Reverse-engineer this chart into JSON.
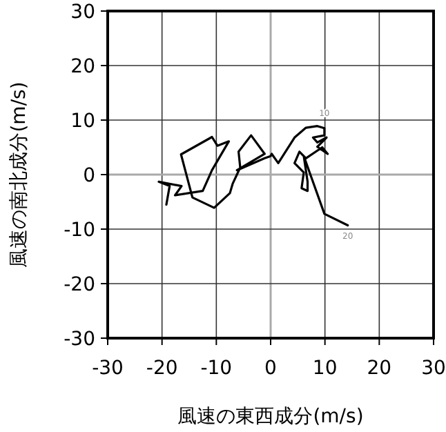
{
  "chart_data": {
    "type": "line",
    "xlabel": "風速の東西成分(m/s)",
    "ylabel": "風速の南北成分(m/s)",
    "xlim": [
      -30,
      30
    ],
    "ylim": [
      -30,
      30
    ],
    "xticks": [
      -30,
      -20,
      -10,
      0,
      10,
      20,
      30
    ],
    "yticks": [
      -30,
      -20,
      -10,
      0,
      10,
      20,
      30
    ],
    "grid": true,
    "series": [
      {
        "color": "#000000",
        "x": [
          -19.2,
          -18.6,
          -20.6,
          -16.4,
          -17.6,
          -12.5,
          -10.8,
          -7.7,
          -9.8,
          -10.8,
          -16.5,
          -14.4,
          -10.4,
          -7.5,
          -7.0,
          -5.6,
          -5.9,
          -3.6,
          -1.1,
          -6.2,
          -1.1,
          0.0,
          0.2,
          1.4,
          4.4,
          6.5,
          8.6,
          9.9,
          9.9,
          7.8,
          8.6,
          10.3,
          8.6,
          10.5,
          9.5,
          6.5,
          5.3,
          4.4,
          6.1,
          5.7,
          6.8,
          6.8,
          6.1,
          9.9,
          14.2
        ],
        "values": [
          -5.5,
          -2.1,
          -1.3,
          -2.1,
          -3.8,
          -3.0,
          0.8,
          6.1,
          5.3,
          6.9,
          3.7,
          -4.2,
          -6.1,
          -3.4,
          -1.7,
          1.3,
          4.2,
          7.2,
          3.8,
          0.8,
          3.0,
          3.4,
          3.8,
          2.1,
          6.8,
          8.6,
          8.9,
          8.5,
          7.2,
          6.8,
          5.9,
          6.8,
          5.1,
          3.8,
          5.0,
          3.0,
          4.2,
          2.1,
          0.4,
          -2.5,
          -3.0,
          -1.3,
          3.4,
          -7.2,
          -9.3
        ]
      }
    ],
    "annotations": [
      {
        "text": "10",
        "x": 9.9,
        "y": 8.5
      },
      {
        "text": "20",
        "x": 14.2,
        "y": -9.3
      }
    ]
  }
}
